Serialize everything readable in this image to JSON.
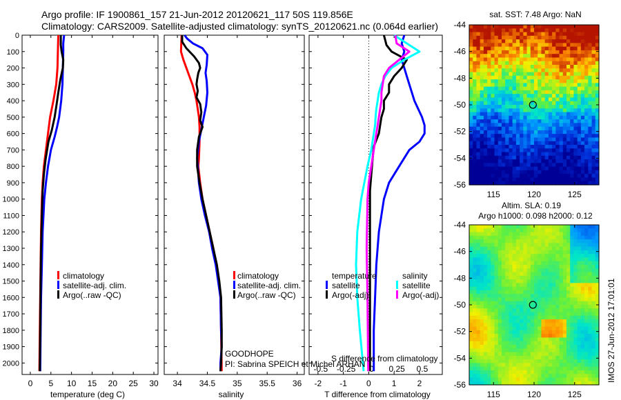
{
  "header": {
    "line1": "Argo profile: IF 1900861_157 21-Jun-2012 20120621_117 50S 119.856E",
    "line2": "Climatology: CARS2009. Satellite-adjusted climatology: synTS_20120621.nc (0.064d earlier)"
  },
  "colors": {
    "red": "#ff0000",
    "blue": "#0000ff",
    "black": "#000000",
    "cyan": "#00ffff",
    "magenta": "#ff00ff"
  },
  "depth_ticks": [
    0,
    100,
    200,
    300,
    400,
    500,
    600,
    700,
    800,
    900,
    1000,
    1100,
    1200,
    1300,
    1400,
    1500,
    1600,
    1700,
    1800,
    1900,
    2000
  ],
  "chart_data": [
    {
      "type": "line",
      "xlabel": "temperature (deg C)",
      "xticks": [
        0,
        5,
        10,
        15,
        20,
        25,
        30
      ],
      "xlim": [
        -2,
        31
      ],
      "ylim": [
        2070,
        0
      ],
      "legend": [
        "climatology",
        "satellite-adj. clim.",
        "Argo(..raw -QC)"
      ],
      "series": [
        {
          "name": "climatology",
          "color": "red",
          "points": [
            [
              6.8,
              0
            ],
            [
              6.7,
              100
            ],
            [
              6.6,
              200
            ],
            [
              6.3,
              300
            ],
            [
              5.6,
              400
            ],
            [
              5.2,
              450
            ],
            [
              4.8,
              500
            ],
            [
              4.3,
              600
            ],
            [
              3.8,
              700
            ],
            [
              3.3,
              800
            ],
            [
              3.0,
              900
            ],
            [
              2.8,
              1000
            ],
            [
              2.6,
              1200
            ],
            [
              2.5,
              1400
            ],
            [
              2.4,
              1600
            ],
            [
              2.3,
              1800
            ],
            [
              2.2,
              2050
            ]
          ]
        },
        {
          "name": "satellite-adj. clim.",
          "color": "blue",
          "points": [
            [
              8.2,
              0
            ],
            [
              8.0,
              50
            ],
            [
              8.0,
              100
            ],
            [
              7.9,
              200
            ],
            [
              7.8,
              300
            ],
            [
              7.5,
              400
            ],
            [
              7.0,
              500
            ],
            [
              6.5,
              560
            ],
            [
              5.9,
              620
            ],
            [
              5.0,
              700
            ],
            [
              4.3,
              800
            ],
            [
              3.8,
              900
            ],
            [
              3.4,
              1000
            ],
            [
              3.0,
              1200
            ],
            [
              2.8,
              1400
            ],
            [
              2.6,
              1600
            ],
            [
              2.5,
              1800
            ],
            [
              2.4,
              2050
            ]
          ]
        },
        {
          "name": "Argo(..raw -QC)",
          "color": "black",
          "points": [
            [
              7.4,
              0
            ],
            [
              7.4,
              60
            ],
            [
              7.6,
              100
            ],
            [
              8.0,
              150
            ],
            [
              7.9,
              200
            ],
            [
              7.3,
              270
            ],
            [
              6.8,
              350
            ],
            [
              6.4,
              420
            ],
            [
              5.9,
              500
            ],
            [
              5.2,
              580
            ],
            [
              4.4,
              650
            ],
            [
              3.7,
              760
            ],
            [
              3.3,
              850
            ],
            [
              3.0,
              950
            ],
            [
              2.8,
              1100
            ],
            [
              2.6,
              1300
            ],
            [
              2.5,
              1500
            ],
            [
              2.4,
              1800
            ],
            [
              2.3,
              2050
            ]
          ]
        }
      ]
    },
    {
      "type": "line",
      "xlabel": "salinity",
      "xticks": [
        34,
        34.5,
        35,
        35.5,
        36
      ],
      "xlim": [
        33.78,
        36.12
      ],
      "ylim": [
        2070,
        0
      ],
      "legend": [
        "climatology",
        "satellite-adj. clim.",
        "Argo(..raw -QC)"
      ],
      "annotations": [
        "GOODHOPE",
        "PI: Sabrina SPEICH et Michel ARHAN"
      ],
      "series": [
        {
          "name": "climatology",
          "color": "red",
          "points": [
            [
              34.07,
              0
            ],
            [
              34.06,
              100
            ],
            [
              34.1,
              150
            ],
            [
              34.15,
              200
            ],
            [
              34.2,
              250
            ],
            [
              34.25,
              300
            ],
            [
              34.29,
              350
            ],
            [
              34.32,
              400
            ],
            [
              34.34,
              450
            ],
            [
              34.36,
              500
            ],
            [
              34.37,
              560
            ],
            [
              34.37,
              650
            ],
            [
              34.36,
              750
            ],
            [
              34.35,
              800
            ],
            [
              34.38,
              900
            ],
            [
              34.42,
              1000
            ],
            [
              34.48,
              1100
            ],
            [
              34.54,
              1200
            ],
            [
              34.6,
              1300
            ],
            [
              34.65,
              1400
            ],
            [
              34.69,
              1500
            ],
            [
              34.72,
              1600
            ],
            [
              34.73,
              1800
            ],
            [
              34.74,
              2050
            ]
          ]
        },
        {
          "name": "satellite-adj. clim.",
          "color": "blue",
          "points": [
            [
              34.12,
              0
            ],
            [
              34.16,
              20
            ],
            [
              34.26,
              50
            ],
            [
              34.42,
              80
            ],
            [
              34.5,
              120
            ],
            [
              34.49,
              180
            ],
            [
              34.47,
              230
            ],
            [
              34.49,
              280
            ],
            [
              34.5,
              350
            ],
            [
              34.48,
              430
            ],
            [
              34.43,
              520
            ],
            [
              34.36,
              650
            ],
            [
              34.33,
              750
            ],
            [
              34.34,
              800
            ],
            [
              34.36,
              900
            ],
            [
              34.4,
              1000
            ],
            [
              34.46,
              1100
            ],
            [
              34.53,
              1200
            ],
            [
              34.58,
              1300
            ],
            [
              34.64,
              1400
            ],
            [
              34.68,
              1500
            ],
            [
              34.72,
              1600
            ],
            [
              34.73,
              1800
            ],
            [
              34.74,
              1900
            ],
            [
              34.72,
              2000
            ],
            [
              34.72,
              2050
            ]
          ]
        },
        {
          "name": "Argo(..raw -QC)",
          "color": "black",
          "points": [
            [
              34.08,
              0
            ],
            [
              34.08,
              40
            ],
            [
              34.15,
              80
            ],
            [
              34.28,
              130
            ],
            [
              34.36,
              170
            ],
            [
              34.38,
              200
            ],
            [
              34.35,
              230
            ],
            [
              34.33,
              270
            ],
            [
              34.32,
              300
            ],
            [
              34.34,
              340
            ],
            [
              34.32,
              380
            ],
            [
              34.38,
              420
            ],
            [
              34.4,
              470
            ],
            [
              34.38,
              520
            ],
            [
              34.42,
              560
            ],
            [
              34.36,
              620
            ],
            [
              34.33,
              700
            ],
            [
              34.33,
              800
            ],
            [
              34.37,
              900
            ],
            [
              34.42,
              1000
            ],
            [
              34.48,
              1100
            ],
            [
              34.54,
              1200
            ],
            [
              34.6,
              1300
            ],
            [
              34.66,
              1400
            ],
            [
              34.7,
              1500
            ],
            [
              34.73,
              1600
            ],
            [
              34.74,
              1800
            ],
            [
              34.74,
              1900
            ],
            [
              34.73,
              2000
            ],
            [
              34.72,
              2050
            ]
          ]
        }
      ]
    },
    {
      "type": "line",
      "xlabel": "T difference from climatology",
      "xticks": [
        -2,
        -1,
        0,
        1,
        2
      ],
      "xlim": [
        -2.35,
        2.9
      ],
      "ylim": [
        2070,
        0
      ],
      "secondary_xlabel": "S difference from climatology",
      "secondary_xticks": [
        "-0.5",
        "-0.25",
        "0",
        "0.25",
        "0.5"
      ],
      "legend": [
        "temperature",
        "satellite",
        "Argo(-adj)",
        "salinity",
        "satellite",
        "Argo(-adj)"
      ],
      "series": [
        {
          "name": "satellite",
          "group": "temperature",
          "color": "blue",
          "points": [
            [
              1.4,
              0
            ],
            [
              1.3,
              50
            ],
            [
              1.4,
              100
            ],
            [
              1.3,
              150
            ],
            [
              1.4,
              200
            ],
            [
              1.5,
              250
            ],
            [
              1.6,
              300
            ],
            [
              1.7,
              350
            ],
            [
              1.8,
              400
            ],
            [
              1.95,
              450
            ],
            [
              2.1,
              500
            ],
            [
              2.2,
              550
            ],
            [
              2.2,
              600
            ],
            [
              2.0,
              650
            ],
            [
              1.6,
              700
            ],
            [
              1.2,
              800
            ],
            [
              0.8,
              900
            ],
            [
              0.6,
              1000
            ],
            [
              0.4,
              1200
            ],
            [
              0.3,
              1400
            ],
            [
              0.25,
              1600
            ],
            [
              0.2,
              1800
            ],
            [
              0.2,
              2050
            ]
          ]
        },
        {
          "name": "Argo(-adj)",
          "group": "temperature",
          "color": "black",
          "points": [
            [
              0.6,
              0
            ],
            [
              0.7,
              60
            ],
            [
              0.9,
              100
            ],
            [
              1.5,
              150
            ],
            [
              1.3,
              200
            ],
            [
              1.0,
              250
            ],
            [
              0.8,
              300
            ],
            [
              0.8,
              350
            ],
            [
              0.6,
              400
            ],
            [
              0.6,
              450
            ],
            [
              0.5,
              500
            ],
            [
              0.45,
              550
            ],
            [
              0.4,
              600
            ],
            [
              0.2,
              680
            ],
            [
              0.15,
              760
            ],
            [
              0.1,
              850
            ],
            [
              0.05,
              950
            ],
            [
              0.05,
              1200
            ],
            [
              0.05,
              1500
            ],
            [
              0.05,
              1800
            ],
            [
              0.05,
              2050
            ]
          ]
        },
        {
          "name": "satellite",
          "group": "salinity",
          "color": "cyan",
          "points": [
            [
              1.0,
              0
            ],
            [
              1.5,
              50
            ],
            [
              2.0,
              100
            ],
            [
              1.4,
              150
            ],
            [
              0.9,
              200
            ],
            [
              0.65,
              250
            ],
            [
              0.5,
              300
            ],
            [
              0.4,
              350
            ],
            [
              0.35,
              400
            ],
            [
              0.3,
              450
            ],
            [
              0.27,
              500
            ],
            [
              0.25,
              550
            ],
            [
              0.2,
              600
            ],
            [
              0.1,
              700
            ],
            [
              -0.05,
              800
            ],
            [
              -0.3,
              1000
            ],
            [
              -0.45,
              1200
            ],
            [
              -0.5,
              1400
            ],
            [
              -0.45,
              1600
            ],
            [
              -0.35,
              1800
            ],
            [
              -0.2,
              2050
            ]
          ]
        },
        {
          "name": "Argo(-adj)",
          "group": "salinity",
          "color": "magenta",
          "points": [
            [
              1.05,
              0
            ],
            [
              1.1,
              50
            ],
            [
              1.6,
              100
            ],
            [
              1.2,
              150
            ],
            [
              0.8,
              200
            ],
            [
              0.6,
              250
            ],
            [
              0.55,
              300
            ],
            [
              0.5,
              350
            ],
            [
              0.5,
              400
            ],
            [
              0.45,
              450
            ],
            [
              0.4,
              500
            ],
            [
              0.35,
              550
            ],
            [
              0.3,
              600
            ],
            [
              0.2,
              700
            ],
            [
              0.1,
              800
            ],
            [
              0.0,
              900
            ],
            [
              -0.05,
              1000
            ],
            [
              -0.08,
              1300
            ],
            [
              -0.05,
              1600
            ],
            [
              -0.03,
              1900
            ],
            [
              -0.02,
              2050
            ]
          ]
        }
      ]
    },
    {
      "type": "heatmap",
      "title": "sat. SST: 7.48 Argo: NaN",
      "xticks": [
        115,
        120,
        125
      ],
      "yticks": [
        -44,
        -46,
        -48,
        -50,
        -52,
        -54,
        -56
      ],
      "xlim": [
        112,
        128
      ],
      "ylim": [
        -56,
        -44
      ],
      "marker": [
        119.856,
        -50
      ]
    },
    {
      "type": "heatmap",
      "title": "Altim. SLA: 0.19",
      "subtitle": "Argo h1000: 0.098 h2000: 0.12",
      "xticks": [
        115,
        120,
        125
      ],
      "yticks": [
        -44,
        -46,
        -48,
        -50,
        -52,
        -54,
        -56
      ],
      "xlim": [
        112,
        128
      ],
      "ylim": [
        -56,
        -44
      ],
      "marker": [
        119.856,
        -50
      ],
      "side_label": "IMOS 27-Jun-2012 17:01:01"
    }
  ]
}
